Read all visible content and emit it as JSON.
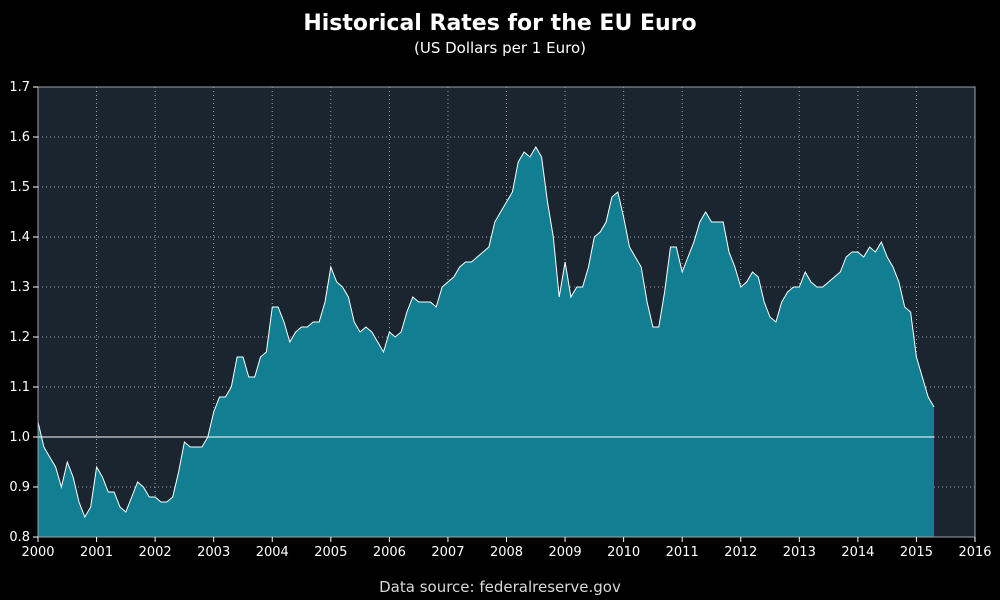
{
  "chart_data": {
    "type": "area",
    "title": "Historical Rates for the EU Euro",
    "subtitle": "(US Dollars per 1 Euro)",
    "source": "Data source: federalreserve.gov",
    "xlabel": "",
    "ylabel": "",
    "xlim": [
      2000,
      2016
    ],
    "ylim": [
      0.8,
      1.7
    ],
    "x_ticks": [
      "2000",
      "2001",
      "2002",
      "2003",
      "2004",
      "2005",
      "2006",
      "2007",
      "2008",
      "2009",
      "2010",
      "2011",
      "2012",
      "2013",
      "2014",
      "2015",
      "2016"
    ],
    "y_ticks": [
      "0.8",
      "0.9",
      "1.0",
      "1.1",
      "1.2",
      "1.3",
      "1.4",
      "1.5",
      "1.6",
      "1.7"
    ],
    "grid": true,
    "reference_line": 1.0,
    "series": [
      {
        "x": [
          2000.0,
          2000.1,
          2000.2,
          2000.3,
          2000.4,
          2000.5,
          2000.6,
          2000.7,
          2000.8,
          2000.9,
          2001.0,
          2001.1,
          2001.2,
          2001.3,
          2001.4,
          2001.5,
          2001.6,
          2001.7,
          2001.8,
          2001.9,
          2002.0,
          2002.1,
          2002.2,
          2002.3,
          2002.4,
          2002.5,
          2002.6,
          2002.7,
          2002.8,
          2002.9,
          2003.0,
          2003.1,
          2003.2,
          2003.3,
          2003.4,
          2003.5,
          2003.6,
          2003.7,
          2003.8,
          2003.9,
          2004.0,
          2004.1,
          2004.2,
          2004.3,
          2004.4,
          2004.5,
          2004.6,
          2004.7,
          2004.8,
          2004.9,
          2005.0,
          2005.1,
          2005.2,
          2005.3,
          2005.4,
          2005.5,
          2005.6,
          2005.7,
          2005.8,
          2005.9,
          2006.0,
          2006.1,
          2006.2,
          2006.3,
          2006.4,
          2006.5,
          2006.6,
          2006.7,
          2006.8,
          2006.9,
          2007.0,
          2007.1,
          2007.2,
          2007.3,
          2007.4,
          2007.5,
          2007.6,
          2007.7,
          2007.8,
          2007.9,
          2008.0,
          2008.1,
          2008.2,
          2008.3,
          2008.4,
          2008.5,
          2008.6,
          2008.7,
          2008.8,
          2008.9,
          2009.0,
          2009.1,
          2009.2,
          2009.3,
          2009.4,
          2009.5,
          2009.6,
          2009.7,
          2009.8,
          2009.9,
          2010.0,
          2010.1,
          2010.2,
          2010.3,
          2010.4,
          2010.5,
          2010.6,
          2010.7,
          2010.8,
          2010.9,
          2011.0,
          2011.1,
          2011.2,
          2011.3,
          2011.4,
          2011.5,
          2011.6,
          2011.7,
          2011.8,
          2011.9,
          2012.0,
          2012.1,
          2012.2,
          2012.3,
          2012.4,
          2012.5,
          2012.6,
          2012.7,
          2012.8,
          2012.9,
          2013.0,
          2013.1,
          2013.2,
          2013.3,
          2013.4,
          2013.5,
          2013.6,
          2013.7,
          2013.8,
          2013.9,
          2014.0,
          2014.1,
          2014.2,
          2014.3,
          2014.4,
          2014.5,
          2014.6,
          2014.7,
          2014.8,
          2014.9,
          2015.0,
          2015.1,
          2015.2,
          2015.3
        ],
        "y": [
          1.03,
          0.98,
          0.96,
          0.94,
          0.9,
          0.95,
          0.92,
          0.87,
          0.84,
          0.86,
          0.94,
          0.92,
          0.89,
          0.89,
          0.86,
          0.85,
          0.88,
          0.91,
          0.9,
          0.88,
          0.88,
          0.87,
          0.87,
          0.88,
          0.93,
          0.99,
          0.98,
          0.98,
          0.98,
          1.0,
          1.05,
          1.08,
          1.08,
          1.1,
          1.16,
          1.16,
          1.12,
          1.12,
          1.16,
          1.17,
          1.26,
          1.26,
          1.23,
          1.19,
          1.21,
          1.22,
          1.22,
          1.23,
          1.23,
          1.27,
          1.34,
          1.31,
          1.3,
          1.28,
          1.23,
          1.21,
          1.22,
          1.21,
          1.19,
          1.17,
          1.21,
          1.2,
          1.21,
          1.25,
          1.28,
          1.27,
          1.27,
          1.27,
          1.26,
          1.3,
          1.31,
          1.32,
          1.34,
          1.35,
          1.35,
          1.36,
          1.37,
          1.38,
          1.43,
          1.45,
          1.47,
          1.49,
          1.55,
          1.57,
          1.56,
          1.58,
          1.56,
          1.47,
          1.4,
          1.28,
          1.35,
          1.28,
          1.3,
          1.3,
          1.34,
          1.4,
          1.41,
          1.43,
          1.48,
          1.49,
          1.44,
          1.38,
          1.36,
          1.34,
          1.27,
          1.22,
          1.22,
          1.29,
          1.38,
          1.38,
          1.33,
          1.36,
          1.39,
          1.43,
          1.45,
          1.43,
          1.43,
          1.43,
          1.37,
          1.34,
          1.3,
          1.31,
          1.33,
          1.32,
          1.27,
          1.24,
          1.23,
          1.27,
          1.29,
          1.3,
          1.3,
          1.33,
          1.31,
          1.3,
          1.3,
          1.31,
          1.32,
          1.33,
          1.36,
          1.37,
          1.37,
          1.36,
          1.38,
          1.37,
          1.39,
          1.36,
          1.34,
          1.31,
          1.26,
          1.25,
          1.16,
          1.12,
          1.08,
          1.06
        ]
      }
    ],
    "colors": {
      "background": "#000000",
      "plot_background": "#1b2530",
      "area_fill": "#117f91",
      "line": "#ffffff",
      "grid": "#9aa4ad",
      "reference_line": "#ffffff"
    }
  }
}
